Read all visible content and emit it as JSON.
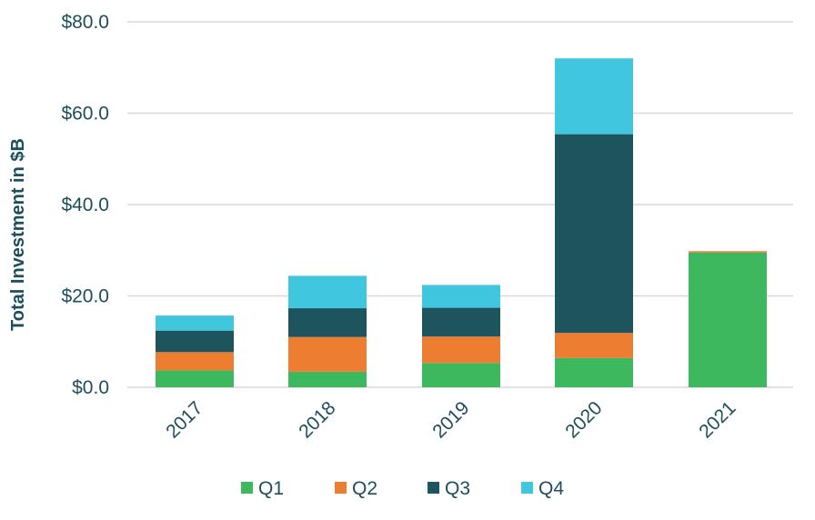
{
  "chart_data": {
    "type": "bar",
    "stacked": true,
    "title": "",
    "xlabel": "",
    "ylabel": "Total Investment  in $B",
    "ylim": [
      0,
      80
    ],
    "yticks": [
      "$0.0",
      "$20.0",
      "$40.0",
      "$60.0",
      "$80.0"
    ],
    "ytick_values": [
      0,
      20,
      40,
      60,
      80
    ],
    "categories": [
      "2017",
      "2018",
      "2019",
      "2020",
      "2021"
    ],
    "series": [
      {
        "name": "Q1",
        "color": "#3db85f",
        "values": [
          3.7,
          3.4,
          5.3,
          6.4,
          29.5
        ]
      },
      {
        "name": "Q2",
        "color": "#ed7d31",
        "values": [
          4.0,
          7.6,
          5.8,
          5.5,
          0.3
        ]
      },
      {
        "name": "Q3",
        "color": "#1d545e",
        "values": [
          4.7,
          6.3,
          6.3,
          43.5,
          0
        ]
      },
      {
        "name": "Q4",
        "color": "#40c6df",
        "values": [
          3.3,
          7.1,
          5.0,
          16.6,
          0
        ]
      }
    ],
    "grid": true,
    "legend_position": "bottom"
  }
}
